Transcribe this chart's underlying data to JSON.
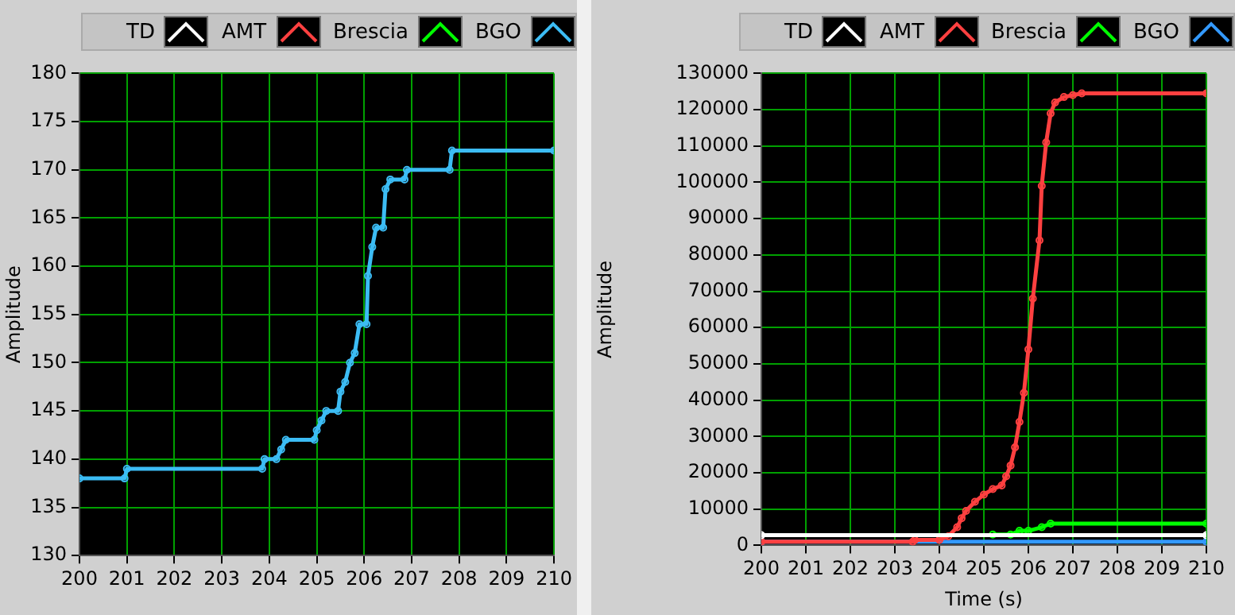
{
  "chart_data": [
    {
      "type": "line",
      "ylabel": "Amplitude",
      "xlim": [
        200,
        210
      ],
      "xticks": [
        200,
        201,
        202,
        203,
        204,
        205,
        206,
        207,
        208,
        209,
        210
      ],
      "ylim": [
        130,
        180
      ],
      "yticks": [
        130,
        135,
        140,
        145,
        150,
        155,
        160,
        165,
        170,
        175,
        180
      ],
      "grid": true,
      "legend": "top",
      "marker": "circle",
      "line_style": "solid",
      "series": [
        {
          "name": "TD",
          "color": "#ffffff"
        },
        {
          "name": "AMT",
          "color": "#ff4040"
        },
        {
          "name": "Brescia",
          "color": "#00ff00"
        },
        {
          "name": "BGO",
          "color": "#3cbcf4",
          "x": [
            200,
            200.95,
            201,
            203.85,
            203.9,
            204.15,
            204.25,
            204.35,
            204.95,
            205.0,
            205.1,
            205.2,
            205.45,
            205.5,
            205.6,
            205.7,
            205.8,
            205.9,
            206.05,
            206.08,
            206.17,
            206.25,
            206.4,
            206.45,
            206.55,
            206.85,
            206.9,
            207.8,
            207.85,
            210
          ],
          "values": [
            138,
            138,
            139,
            139,
            140,
            140,
            141,
            142,
            142,
            143,
            144,
            145,
            145,
            147,
            148,
            150,
            151,
            154,
            154,
            159,
            162,
            164,
            164,
            168,
            169,
            169,
            170,
            170,
            172,
            172
          ]
        }
      ]
    },
    {
      "type": "line",
      "xlabel": "Time (s)",
      "ylabel": "Amplitude",
      "xlim": [
        200,
        210
      ],
      "xticks": [
        200,
        201,
        202,
        203,
        204,
        205,
        206,
        207,
        208,
        209,
        210
      ],
      "ylim": [
        0,
        130000
      ],
      "yticks": [
        0,
        10000,
        20000,
        30000,
        40000,
        50000,
        60000,
        70000,
        80000,
        90000,
        100000,
        110000,
        120000,
        130000
      ],
      "grid": true,
      "legend": "top",
      "marker": "circle",
      "line_style": "solid",
      "series": [
        {
          "name": "TD",
          "color": "#ffffff",
          "x": [
            200,
            210
          ],
          "values": [
            2800,
            2800
          ]
        },
        {
          "name": "AMT",
          "color": "#ff4040",
          "x": [
            200,
            203.4,
            203.45,
            204.0,
            204.2,
            204.4,
            204.5,
            204.6,
            204.8,
            205,
            205.2,
            205.4,
            205.5,
            205.6,
            205.7,
            205.8,
            205.9,
            206,
            206.1,
            206.25,
            206.3,
            206.4,
            206.5,
            206.6,
            206.8,
            207,
            207.2,
            210
          ],
          "values": [
            1000,
            1000,
            1500,
            1500,
            2500,
            5000,
            7500,
            9500,
            12000,
            14000,
            15500,
            16500,
            19000,
            22000,
            27000,
            34000,
            42000,
            54000,
            68000,
            84000,
            99000,
            111000,
            119000,
            122000,
            123500,
            124000,
            124500,
            124500
          ]
        },
        {
          "name": "Brescia",
          "color": "#00ff00",
          "x": [
            205.2,
            205.6,
            205.8,
            206,
            206.3,
            206.5,
            210
          ],
          "values": [
            3000,
            3000,
            4000,
            4000,
            5000,
            6000,
            6000
          ]
        },
        {
          "name": "BGO",
          "color": "#3399ff",
          "x": [
            200,
            210
          ],
          "values": [
            1000,
            1000
          ]
        }
      ]
    }
  ]
}
